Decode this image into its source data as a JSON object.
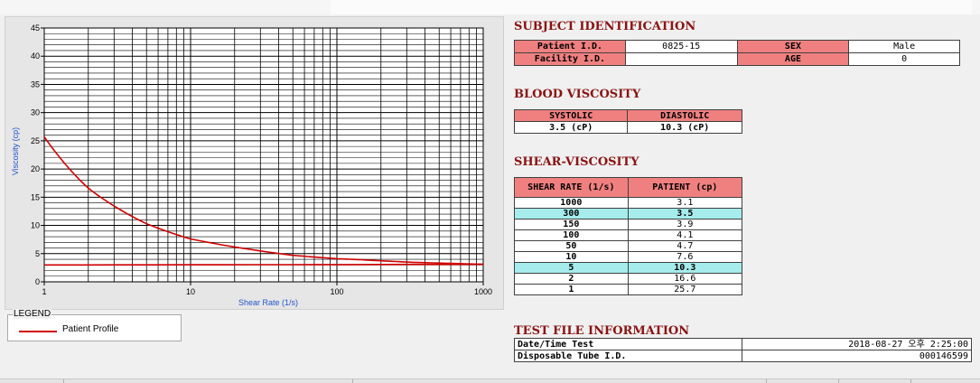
{
  "chart_data": {
    "type": "line",
    "xscale": "log",
    "xlim": [
      1,
      1000
    ],
    "ylim": [
      0,
      45
    ],
    "xticks": [
      "1",
      "10",
      "100",
      "1000"
    ],
    "yticks": [
      "0",
      "5",
      "10",
      "15",
      "20",
      "25",
      "30",
      "35",
      "40",
      "45"
    ],
    "xlabel": "Shear Rate (1/s)",
    "ylabel": "Viscosity (cp)",
    "grid": true,
    "series": [
      {
        "name": "Patient Profile",
        "color": "#d00000",
        "x": [
          1,
          2,
          5,
          10,
          50,
          100,
          150,
          300,
          1000
        ],
        "y": [
          25.7,
          16.6,
          10.3,
          7.6,
          4.7,
          4.1,
          3.9,
          3.5,
          3.1
        ]
      },
      {
        "color": "#d00000",
        "x": [
          1,
          2,
          1000
        ],
        "y": [
          3.0,
          3.0,
          3.1
        ]
      }
    ]
  },
  "legend": {
    "title": "LEGEND",
    "label": "Patient Profile"
  },
  "subject": {
    "title": "SUBJECT IDENTIFICATION",
    "patient_id_label": "Patient I.D.",
    "patient_id": "0825-15",
    "sex_label": "SEX",
    "sex": "Male",
    "facility_label": "Facility I.D.",
    "facility": "",
    "age_label": "AGE",
    "age": "0"
  },
  "blood": {
    "title": "BLOOD VISCOSITY",
    "systolic_label": "SYSTOLIC",
    "diastolic_label": "DIASTOLIC",
    "systolic": "3.5 (cP)",
    "diastolic": "10.3 (cP)"
  },
  "shear": {
    "title": "SHEAR-VISCOSITY",
    "col1": "SHEAR RATE (1/s)",
    "col2": "PATIENT (cp)",
    "rows": [
      {
        "rate": "1000",
        "patient": "3.1"
      },
      {
        "rate": "300",
        "patient": "3.5"
      },
      {
        "rate": "150",
        "patient": "3.9"
      },
      {
        "rate": "100",
        "patient": "4.1"
      },
      {
        "rate": "50",
        "patient": "4.7"
      },
      {
        "rate": "10",
        "patient": "7.6"
      },
      {
        "rate": "5",
        "patient": "10.3"
      },
      {
        "rate": "2",
        "patient": "16.6"
      },
      {
        "rate": "1",
        "patient": "25.7"
      }
    ]
  },
  "test": {
    "title": "TEST FILE INFORMATION",
    "date_label": "Date/Time Test",
    "date": "2018-08-27  오후 2:25:00",
    "tube_label": "Disposable Tube I.D.",
    "tube": "000146599"
  }
}
